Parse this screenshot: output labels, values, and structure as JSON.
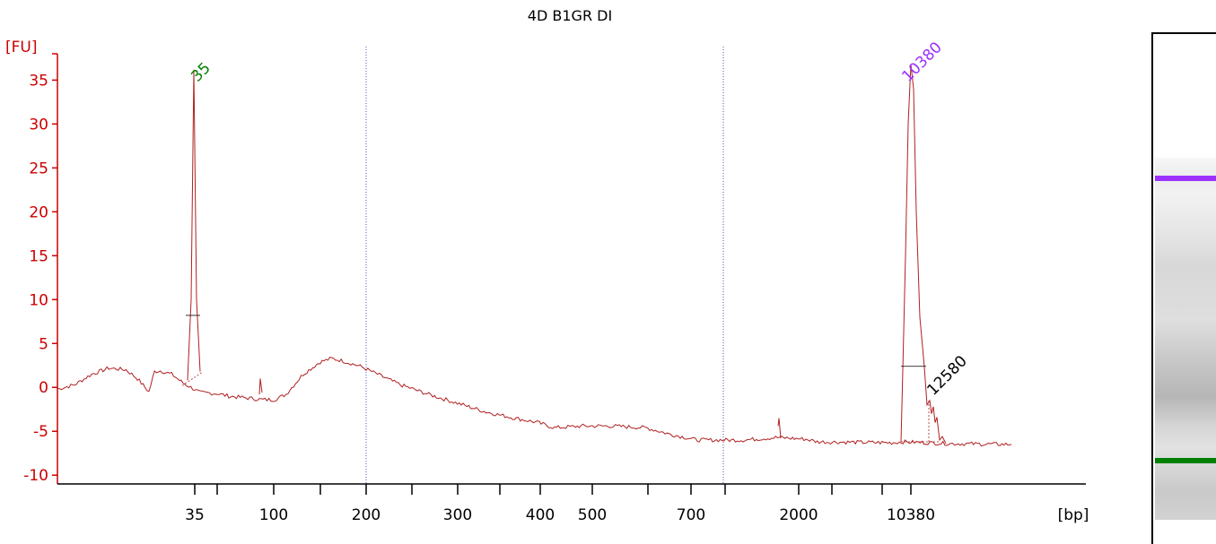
{
  "chart_data": {
    "type": "line",
    "title": "4D B1GR DI",
    "ylabel": "[FU]",
    "xlabel": "[bp]",
    "ylim": [
      -11,
      38
    ],
    "y_ticks": [
      -10,
      -5,
      0,
      5,
      10,
      15,
      20,
      25,
      30,
      35
    ],
    "x_tick_labels": [
      "35",
      "100",
      "200",
      "300",
      "400",
      "500",
      "700",
      "2000",
      "10380"
    ],
    "axis_color": "#cc0000",
    "line_color": "#b02020",
    "baseline_points": [
      [
        0,
        -0.2
      ],
      [
        3,
        0.3
      ],
      [
        6,
        1.5
      ],
      [
        9,
        2.2
      ],
      [
        12,
        2.0
      ],
      [
        14,
        1.0
      ],
      [
        16,
        -0.5
      ],
      [
        17,
        1.8
      ],
      [
        18,
        1.9
      ],
      [
        20,
        1.5
      ],
      [
        22,
        0.5
      ],
      [
        25,
        -0.6
      ],
      [
        28,
        -0.7
      ],
      [
        30,
        -1.0
      ],
      [
        33,
        -1.2
      ],
      [
        36,
        -1.4
      ],
      [
        38,
        -1.4
      ],
      [
        40,
        -0.8
      ],
      [
        43,
        1.5
      ],
      [
        46,
        2.9
      ],
      [
        48,
        3.3
      ],
      [
        50,
        3.0
      ],
      [
        53,
        2.4
      ],
      [
        56,
        1.5
      ],
      [
        60,
        0.3
      ],
      [
        65,
        -0.8
      ],
      [
        70,
        -1.8
      ],
      [
        75,
        -2.8
      ],
      [
        80,
        -3.5
      ],
      [
        84,
        -4.0
      ],
      [
        87,
        -4.6
      ],
      [
        92,
        -4.4
      ],
      [
        97,
        -4.4
      ],
      [
        103,
        -4.6
      ],
      [
        107,
        -5.3
      ],
      [
        112,
        -6.0
      ],
      [
        120,
        -6.0
      ],
      [
        126,
        -5.7
      ],
      [
        131,
        -5.9
      ],
      [
        133,
        -6.2
      ],
      [
        146,
        -6.3
      ],
      [
        148,
        -6.2
      ],
      [
        156,
        -6.4
      ],
      [
        167,
        -6.5
      ]
    ],
    "peaks": [
      {
        "label": "35",
        "x": 21,
        "height": 36.2,
        "color": "#008000"
      },
      {
        "label": "10380",
        "x": 139,
        "height": 36.8,
        "color": "#9b30ff"
      },
      {
        "label": "12580",
        "x": 145,
        "height": -1.5,
        "color": "#000000"
      }
    ],
    "gel_bands": [
      {
        "name": "upper-marker-band",
        "color": "#9b30ff"
      },
      {
        "name": "lower-marker-band",
        "color": "#008000"
      }
    ]
  }
}
